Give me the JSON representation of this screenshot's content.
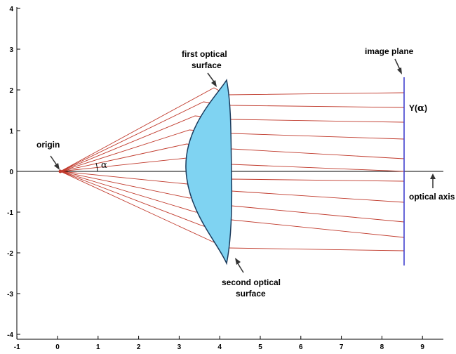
{
  "axes": {
    "x_ticks": [
      "-1",
      "0",
      "1",
      "2",
      "3",
      "4",
      "5",
      "6",
      "7",
      "8",
      "9"
    ],
    "y_ticks": [
      "4",
      "3",
      "2",
      "1",
      "0",
      "-1",
      "-2",
      "-3",
      "-4"
    ]
  },
  "labels": {
    "origin": "origin",
    "alpha": "α",
    "first_surface_line1": "first optical",
    "first_surface_line2": "surface",
    "second_surface_line1": "second optical",
    "second_surface_line2": "surface",
    "image_plane": "image plane",
    "y_alpha_prefix": "Y(",
    "y_alpha_symbol": "α",
    "y_alpha_suffix": ")",
    "optical_axis": "optical axis"
  },
  "colors": {
    "ray": "#c0392b",
    "lens_fill": "#7fd3f2",
    "lens_stroke": "#1a3a5c",
    "image_plane": "#3333cc",
    "axis": "#000000"
  }
}
